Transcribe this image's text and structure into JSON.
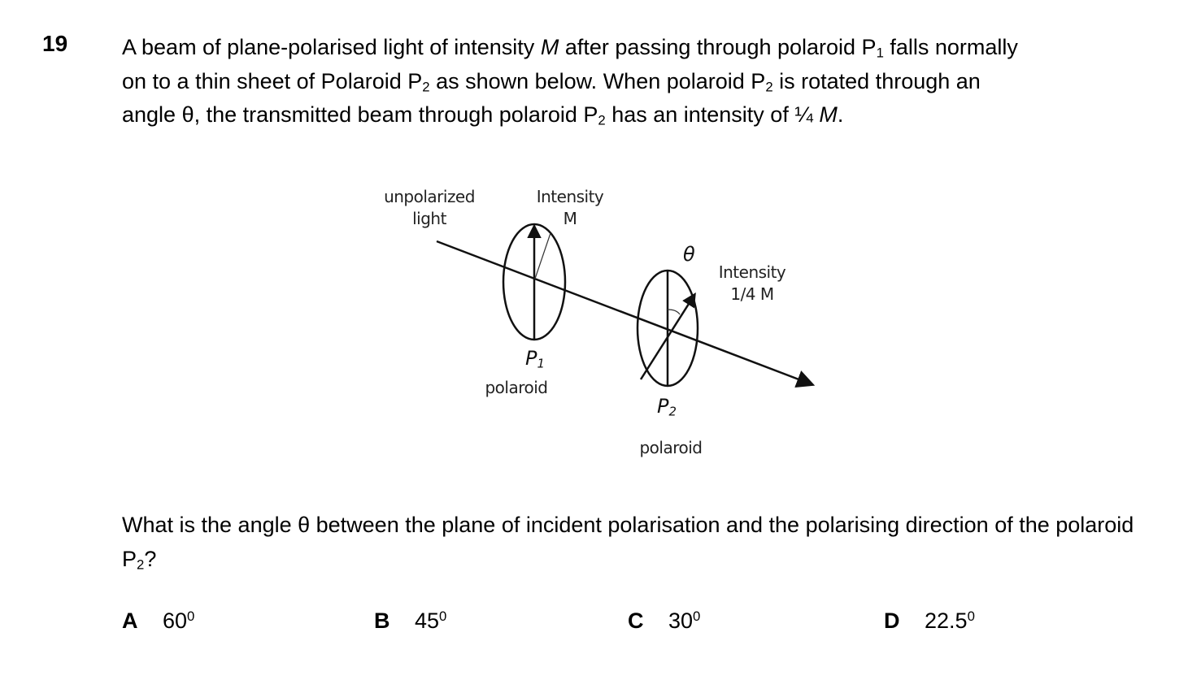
{
  "question": {
    "number": "19",
    "stem": {
      "l1_a": "A beam of plane-polarised light of intensity ",
      "l1_m": "M",
      "l1_b": " after passing through polaroid P",
      "l1_sub": "1",
      "l1_c": " falls normally",
      "l2_a": "on to a thin sheet of Polaroid P",
      "l2_sub1": "2",
      "l2_b": " as shown below. When polaroid P",
      "l2_sub2": "2",
      "l2_c": " is rotated through an",
      "l3_a": "angle θ, the transmitted beam through polaroid P",
      "l3_sub": "2",
      "l3_b": " has an intensity of ¼ ",
      "l3_m": "M",
      "l3_c": "."
    },
    "prompt": {
      "a": "What is the angle θ between the plane of incident polarisation and the polarising direction of the polaroid P",
      "sub": "2",
      "b": "?"
    },
    "options": [
      {
        "letter": "A",
        "value": "60",
        "sup": "0"
      },
      {
        "letter": "B",
        "value": "45",
        "sup": "0"
      },
      {
        "letter": "C",
        "value": "30",
        "sup": "0"
      },
      {
        "letter": "D",
        "value": "22.5",
        "sup": "0"
      }
    ]
  },
  "diagram": {
    "unpolarized_1": "unpolarized",
    "unpolarized_2": "light",
    "intensity_m_1": "Intensity",
    "intensity_m_2": "M",
    "theta": "θ",
    "intensity_q_1": "Intensity",
    "intensity_q_2": "1/4 M",
    "p1": "P",
    "p1_sub": "1",
    "p1_caption": "polaroid",
    "p2": "P",
    "p2_sub": "2",
    "p2_caption": "polaroid"
  }
}
